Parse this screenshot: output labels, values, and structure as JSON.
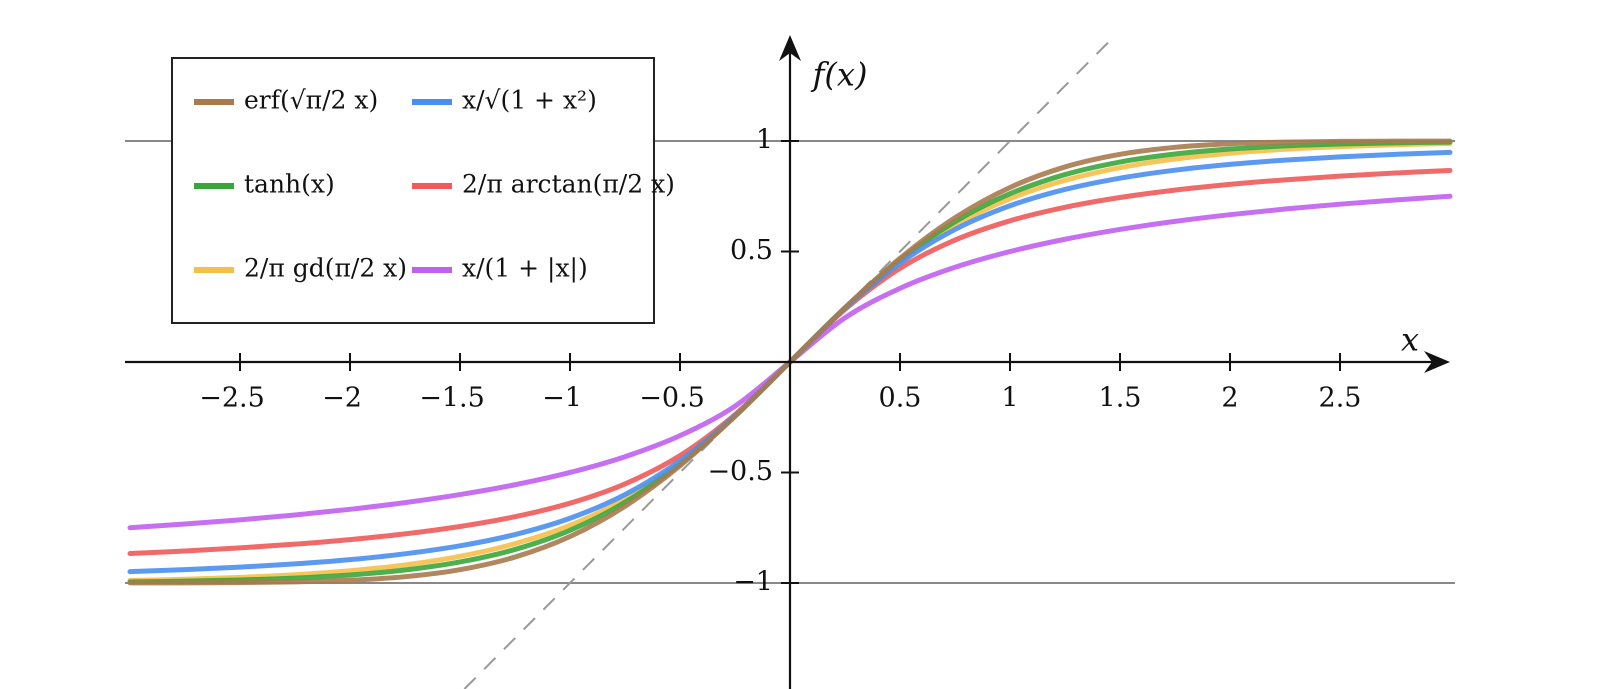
{
  "chart_data": {
    "type": "line",
    "x_label": "x",
    "y_label": "f(x)",
    "x": [
      -3,
      -2.75,
      -2.5,
      -2.25,
      -2,
      -1.75,
      -1.5,
      -1.25,
      -1,
      -0.75,
      -0.5,
      -0.25,
      0,
      0.25,
      0.5,
      0.75,
      1,
      1.25,
      1.5,
      1.75,
      2,
      2.25,
      2.5,
      2.75,
      3
    ],
    "xlim": [
      -3,
      3
    ],
    "ylim": [
      -1.48,
      1.48
    ],
    "xticks": [
      {
        "value": -2.5,
        "label": "−2.5"
      },
      {
        "value": -2,
        "label": "−2"
      },
      {
        "value": -1.5,
        "label": "−1.5"
      },
      {
        "value": -1,
        "label": "−1"
      },
      {
        "value": -0.5,
        "label": "−0.5"
      },
      0.5,
      1,
      1.5,
      2,
      2.5
    ],
    "yticks": [
      {
        "value": -1,
        "label": "−1"
      },
      {
        "value": -0.5,
        "label": "−0.5"
      },
      0.5,
      1
    ],
    "reference_lines": [
      -1,
      1
    ],
    "series": [
      {
        "name": "erf(√π/2 x)",
        "color": "#a97a4e",
        "values": [
          -0.9998,
          -0.9995,
          -0.9983,
          -0.9952,
          -0.9878,
          -0.9717,
          -0.9399,
          -0.8828,
          -0.7899,
          -0.6528,
          -0.4691,
          -0.246,
          0,
          0.246,
          0.4691,
          0.6528,
          0.7899,
          0.8828,
          0.9399,
          0.9717,
          0.9878,
          0.9952,
          0.9983,
          0.9995,
          0.9998
        ]
      },
      {
        "name": "x/√(1 + x²)",
        "color": "#4a8ff0",
        "values": [
          -0.9487,
          -0.9398,
          -0.9285,
          -0.9138,
          -0.8944,
          -0.8682,
          -0.8321,
          -0.7809,
          -0.7071,
          -0.6,
          -0.4472,
          -0.2425,
          0,
          0.2425,
          0.4472,
          0.6,
          0.7071,
          0.7809,
          0.8321,
          0.8682,
          0.8944,
          0.9138,
          0.9285,
          0.9398,
          0.9487
        ]
      },
      {
        "name": "tanh(x)",
        "color": "#3aa63a",
        "values": [
          -0.9951,
          -0.9919,
          -0.9866,
          -0.978,
          -0.964,
          -0.9414,
          -0.9051,
          -0.8483,
          -0.7616,
          -0.6351,
          -0.4621,
          -0.2449,
          0,
          0.2449,
          0.4621,
          0.6351,
          0.7616,
          0.8483,
          0.9051,
          0.9414,
          0.964,
          0.978,
          0.9866,
          0.9919,
          0.9951
        ]
      },
      {
        "name": "2/π arctan(π/2 x)",
        "color": "#f05a5a",
        "values": [
          -0.8669,
          -0.8552,
          -0.8413,
          -0.8245,
          -0.8038,
          -0.7779,
          -0.7445,
          -0.7002,
          -0.6391,
          -0.5518,
          -0.4239,
          -0.2385,
          0,
          0.2385,
          0.4239,
          0.5518,
          0.6391,
          0.7002,
          0.7445,
          0.7779,
          0.8038,
          0.8245,
          0.8413,
          0.8552,
          0.8669
        ]
      },
      {
        "name": "2/π gd(π/2 x)",
        "color": "#f5c04a",
        "values": [
          -0.9887,
          -0.9831,
          -0.9748,
          -0.9628,
          -0.9449,
          -0.9186,
          -0.8796,
          -0.8221,
          -0.7393,
          -0.6198,
          -0.4556,
          -0.244,
          0,
          0.244,
          0.4556,
          0.6198,
          0.7393,
          0.8221,
          0.8796,
          0.9186,
          0.9449,
          0.9628,
          0.9748,
          0.9831,
          0.9887
        ]
      },
      {
        "name": "x/(1 + |x|)",
        "color": "#c060f0",
        "values": [
          -0.75,
          -0.7333,
          -0.7143,
          -0.6923,
          -0.6667,
          -0.6364,
          -0.6,
          -0.5556,
          -0.5,
          -0.4286,
          -0.3333,
          -0.2,
          0,
          0.2,
          0.3333,
          0.4286,
          0.5,
          0.5556,
          0.6,
          0.6364,
          0.6667,
          0.6923,
          0.7143,
          0.7333,
          0.75
        ]
      }
    ]
  }
}
